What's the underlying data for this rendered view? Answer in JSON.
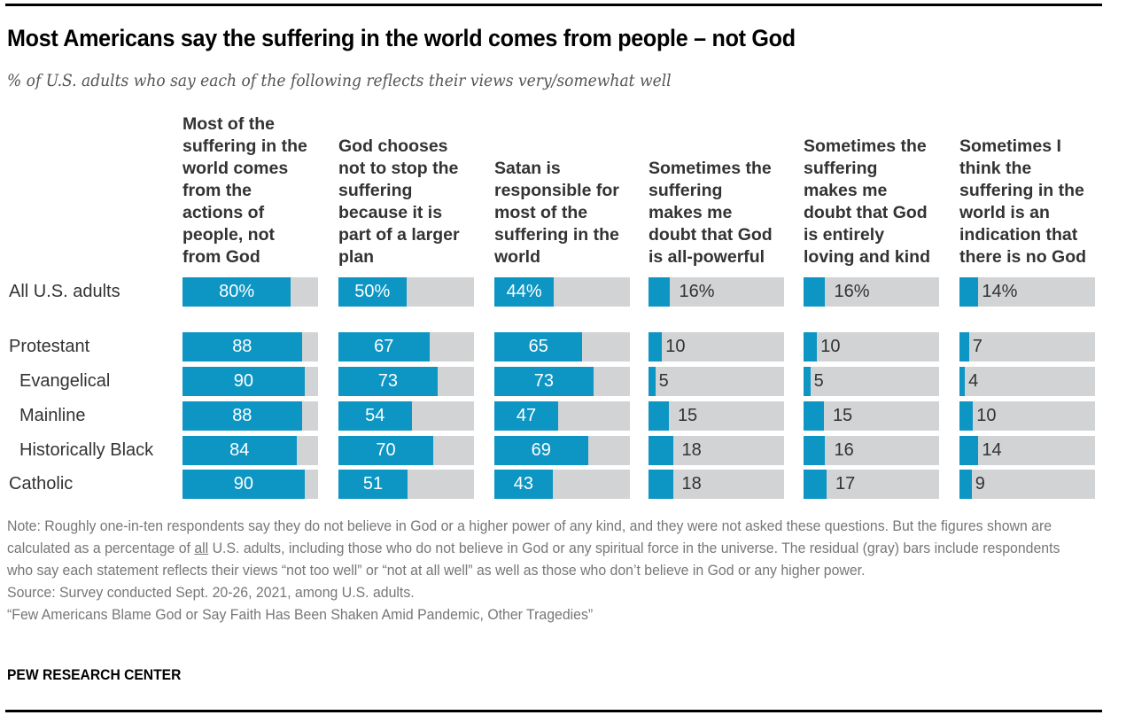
{
  "chart_data": {
    "type": "bar",
    "orientation": "horizontal",
    "title": "Most Americans say the suffering in the world comes from people – not God",
    "subtitle": "% of U.S. adults who say each of the following reflects their views very/somewhat well",
    "xlim": [
      0,
      100
    ],
    "grid": false,
    "legend": "none",
    "columns": [
      "Most of the\nsuffering in the\nworld comes\nfrom the\nactions of\npeople, not\nfrom God",
      "God chooses\nnot to stop the\nsuffering\nbecause it is\npart of a larger\nplan",
      "Satan is\nresponsible for\nmost of the\nsuffering in the\nworld",
      "Sometimes the\nsuffering\nmakes me\ndoubt that God\nis all-powerful",
      "Sometimes the\nsuffering\nmakes me\ndoubt that God\nis entirely\nloving and kind",
      "Sometimes I\nthink the\nsuffering in the\nworld is an\nindication that\nthere is no God"
    ],
    "categories": [
      "All U.S. adults",
      "Protestant",
      "Evangelical",
      "Mainline",
      "Historically Black",
      "Catholic"
    ],
    "indented": [
      false,
      false,
      true,
      true,
      true,
      false
    ],
    "series": [
      {
        "name": "Most of the suffering in the world comes from the actions of people, not from God",
        "values": [
          80,
          88,
          90,
          88,
          84,
          90
        ],
        "labels": [
          "80%",
          "88",
          "90",
          "88",
          "84",
          "90"
        ]
      },
      {
        "name": "God chooses not to stop the suffering because it is part of a larger plan",
        "values": [
          50,
          67,
          73,
          54,
          70,
          51
        ],
        "labels": [
          "50%",
          "67",
          "73",
          "54",
          "70",
          "51"
        ]
      },
      {
        "name": "Satan is responsible for most of the suffering in the world",
        "values": [
          44,
          65,
          73,
          47,
          69,
          43
        ],
        "labels": [
          "44%",
          "65",
          "73",
          "47",
          "69",
          "43"
        ]
      },
      {
        "name": "Sometimes the suffering makes me doubt that God is all-powerful",
        "values": [
          16,
          10,
          5,
          15,
          18,
          18
        ],
        "labels": [
          "16%",
          "10",
          "5",
          "15",
          "18",
          "18"
        ]
      },
      {
        "name": "Sometimes the suffering makes me doubt that God is entirely loving and kind",
        "values": [
          16,
          10,
          5,
          15,
          16,
          17
        ],
        "labels": [
          "16%",
          "10",
          "5",
          "15",
          "16",
          "17"
        ]
      },
      {
        "name": "Sometimes I think the suffering in the world is an indication that there is no God",
        "values": [
          14,
          7,
          4,
          10,
          14,
          9
        ],
        "labels": [
          "14%",
          "7",
          "4",
          "10",
          "14",
          "9"
        ]
      }
    ],
    "colors": {
      "value": "#0d95c3",
      "residual": "#d1d3d4"
    }
  },
  "notes": {
    "note_prefix": "Note: Roughly one-in-ten respondents say they do not believe in God or a higher power of any kind, and they were not asked these questions. But the figures shown are calculated as a percentage of ",
    "note_underlined": "all",
    "note_suffix": " U.S. adults, including those who do not believe in God or any spiritual force in the universe. The residual (gray) bars include respondents who say each statement reflects their views “not too well” or “not at all well” as well as those who don’t believe in God or any higher power.",
    "source": "Source: Survey conducted Sept. 20-26, 2021, among U.S. adults.",
    "report": "“Few Americans Blame God or Say Faith Has Been Shaken Amid Pandemic, Other Tragedies”",
    "brand": "PEW RESEARCH CENTER"
  }
}
